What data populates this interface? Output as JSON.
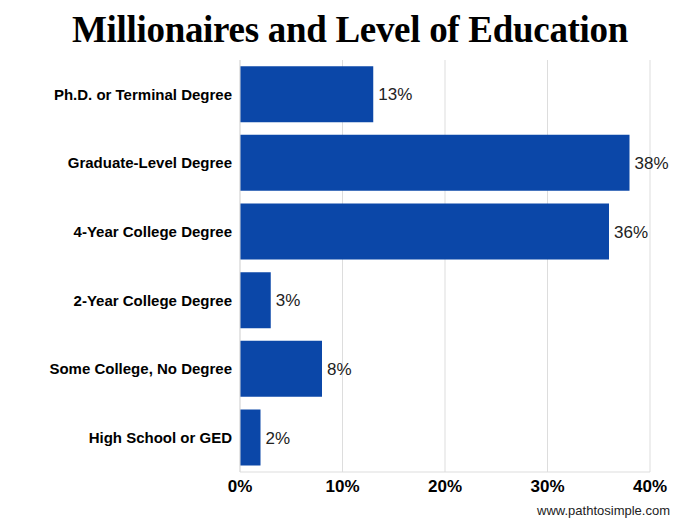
{
  "chart_data": {
    "type": "bar",
    "title": "Millionaires and Level of Education",
    "source": "www.pathtosimple.com",
    "categories": [
      "Ph.D. or Terminal Degree",
      "Graduate-Level Degree",
      "4-Year College Degree",
      "2-Year College Degree",
      "Some College, No Degree",
      "High School or GED"
    ],
    "values": [
      13,
      38,
      36,
      3,
      8,
      2
    ],
    "value_labels": [
      "13%",
      "38%",
      "36%",
      "3%",
      "8%",
      "2%"
    ],
    "color": "#0b47a8",
    "orientation": "horizontal",
    "data_labels": true,
    "grid": true,
    "xlim": [
      0,
      40
    ],
    "xticks": [
      {
        "value": 0,
        "label": "0%"
      },
      {
        "value": 10,
        "label": "10%"
      },
      {
        "value": 20,
        "label": "20%"
      },
      {
        "value": 30,
        "label": "30%"
      },
      {
        "value": 40,
        "label": "40%"
      }
    ]
  }
}
